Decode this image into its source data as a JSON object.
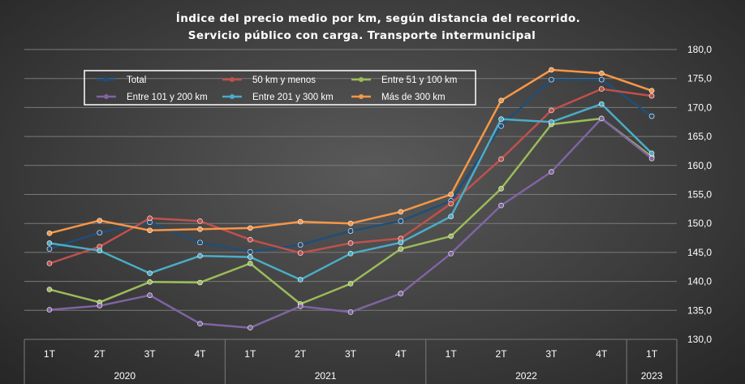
{
  "chart_data": {
    "type": "line",
    "title": [
      "Índice del precio medio por km, según distancia del recorrido.",
      "Servicio público con carga. Transporte intermunicipal"
    ],
    "xlabel": "",
    "ylabel": "",
    "categories": [
      "1T",
      "2T",
      "3T",
      "4T",
      "1T",
      "2T",
      "3T",
      "4T",
      "1T",
      "2T",
      "3T",
      "4T",
      "1T"
    ],
    "year_groups": [
      {
        "label": "2020",
        "count": 4
      },
      {
        "label": "2021",
        "count": 4
      },
      {
        "label": "2022",
        "count": 4
      },
      {
        "label": "2023",
        "count": 1
      }
    ],
    "ylim": [
      130,
      180
    ],
    "ytick_step": 5,
    "ytick_labels": [
      "130,0",
      "135,0",
      "140,0",
      "145,0",
      "150,0",
      "155,0",
      "160,0",
      "165,0",
      "170,0",
      "175,0",
      "180,0"
    ],
    "grid": true,
    "legend_position": "top-left",
    "series": [
      {
        "name": "Total",
        "color": "#1f4e79",
        "values": [
          145.6,
          148.4,
          150.2,
          146.7,
          145.1,
          146.3,
          148.7,
          150.4,
          153.9,
          166.8,
          174.8,
          174.8,
          168.5
        ]
      },
      {
        "name": "50 km y menos",
        "color": "#c0504d",
        "values": [
          143.1,
          146.0,
          150.9,
          150.4,
          147.2,
          144.9,
          146.6,
          147.4,
          153.4,
          161.1,
          169.5,
          173.2,
          172.0
        ]
      },
      {
        "name": "Entre 51 y 100 km",
        "color": "#9bbb59",
        "values": [
          138.6,
          136.4,
          139.9,
          139.8,
          143.1,
          136.1,
          139.6,
          145.6,
          147.8,
          156.0,
          167.1,
          168.1,
          161.5
        ]
      },
      {
        "name": "Entre 101 y 200 km",
        "color": "#8064a2",
        "values": [
          135.1,
          135.8,
          137.6,
          132.7,
          132.0,
          135.7,
          134.7,
          137.9,
          144.8,
          153.1,
          158.9,
          168.1,
          161.2
        ]
      },
      {
        "name": "Entre 201 y 300 km",
        "color": "#4bacc6",
        "values": [
          146.6,
          145.3,
          141.4,
          144.4,
          144.2,
          140.3,
          144.8,
          146.7,
          151.2,
          168.0,
          167.5,
          170.6,
          162.1
        ]
      },
      {
        "name": "Más de 300 km",
        "color": "#f79646",
        "values": [
          148.3,
          150.5,
          148.8,
          149.0,
          149.2,
          150.3,
          150.0,
          152.0,
          155.0,
          171.2,
          176.5,
          175.9,
          172.9
        ]
      }
    ]
  }
}
